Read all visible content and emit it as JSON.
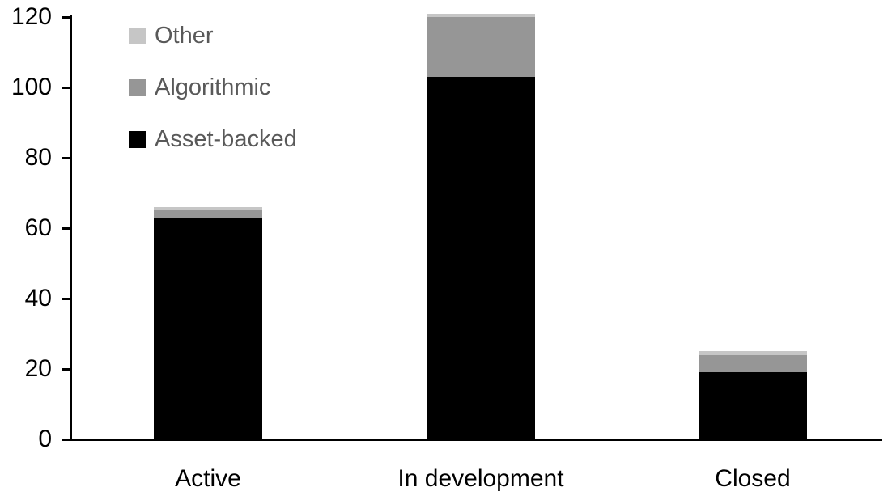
{
  "chart_data": {
    "type": "bar",
    "stacked": true,
    "title": "",
    "xlabel": "",
    "ylabel": "",
    "categories": [
      "Active",
      "In development",
      "Closed"
    ],
    "series": [
      {
        "name": "Asset-backed",
        "color": "#000000",
        "values": [
          63,
          103,
          19
        ]
      },
      {
        "name": "Algorithmic",
        "color": "#969696",
        "values": [
          2,
          17,
          5
        ]
      },
      {
        "name": "Other",
        "color": "#c6c6c6",
        "values": [
          1,
          1,
          1
        ]
      }
    ],
    "totals": [
      66,
      121,
      25
    ],
    "y_axis": {
      "min": 0,
      "max": 120,
      "tick_interval": 20,
      "ticks": [
        0,
        20,
        40,
        60,
        80,
        100,
        120
      ],
      "label_color": "#000000"
    },
    "x_axis": {
      "label_color": "#000000"
    },
    "legend": {
      "position": "top-left",
      "order": [
        "Other",
        "Algorithmic",
        "Asset-backed"
      ],
      "text_color": "#595959"
    },
    "grid": false,
    "axis_color": "#000000",
    "background": "#ffffff"
  }
}
